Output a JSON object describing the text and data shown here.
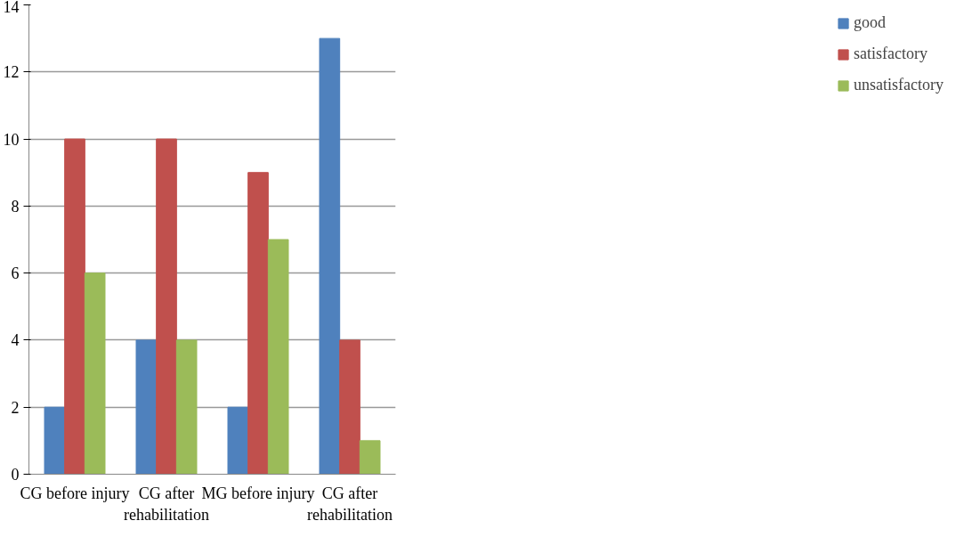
{
  "chart_data": {
    "type": "bar",
    "categories": [
      "CG before injury",
      "CG after rehabilitation",
      "MG before injury",
      "CG after rehabilitation"
    ],
    "series": [
      {
        "name": "good",
        "color": "#4f81bd",
        "values": [
          2,
          4,
          2,
          13
        ]
      },
      {
        "name": "satisfactory",
        "color": "#c0504d",
        "values": [
          10,
          10,
          9,
          4
        ]
      },
      {
        "name": "unsatisfactory",
        "color": "#9bbb59",
        "values": [
          6,
          4,
          7,
          1
        ]
      }
    ],
    "ylim": [
      0,
      14
    ],
    "yticks": [
      0,
      2,
      4,
      6,
      8,
      10,
      12,
      14
    ],
    "grid": "y",
    "legend": "right"
  }
}
